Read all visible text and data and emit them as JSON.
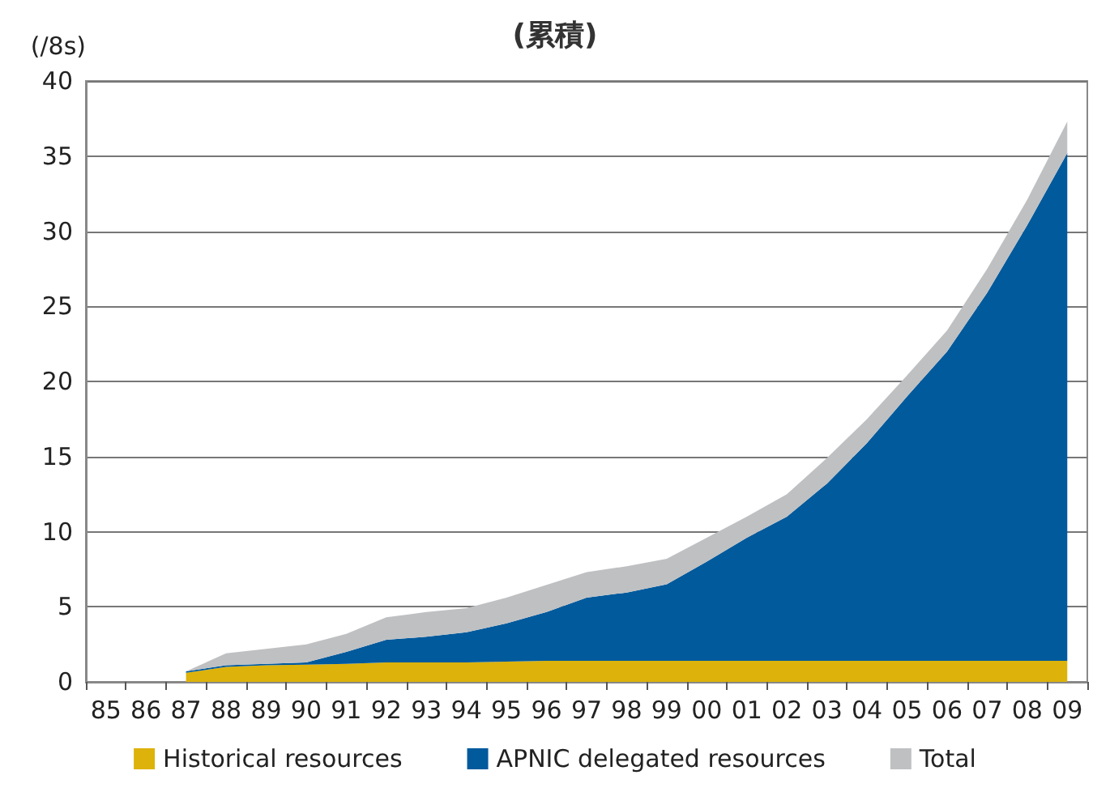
{
  "chart_data": {
    "type": "area",
    "title": "(累積)",
    "ylabel": "(/8s)",
    "stacked": true,
    "categories": [
      "85",
      "86",
      "87",
      "88",
      "89",
      "90",
      "91",
      "92",
      "93",
      "94",
      "95",
      "96",
      "97",
      "98",
      "99",
      "00",
      "01",
      "02",
      "03",
      "04",
      "05",
      "06",
      "07",
      "08",
      "09"
    ],
    "series": [
      {
        "name": "Historical resources",
        "color": "#ddb20a",
        "values": [
          null,
          null,
          0.6,
          1.0,
          1.1,
          1.15,
          1.2,
          1.3,
          1.3,
          1.3,
          1.35,
          1.4,
          1.4,
          1.4,
          1.4,
          1.4,
          1.4,
          1.4,
          1.4,
          1.4,
          1.4,
          1.4,
          1.4,
          1.4,
          1.4
        ]
      },
      {
        "name": "APNIC delegated resources",
        "color": "#005a9c",
        "values": [
          null,
          null,
          0.1,
          0.1,
          0.1,
          0.15,
          0.8,
          1.5,
          1.7,
          2.0,
          2.55,
          3.25,
          4.2,
          4.55,
          5.1,
          6.6,
          8.2,
          9.6,
          11.8,
          14.5,
          17.6,
          20.6,
          24.5,
          29.0,
          33.8
        ]
      },
      {
        "name": "Total",
        "color": "#bfc0c2",
        "values": [
          null,
          null,
          0.0,
          0.8,
          1.0,
          1.2,
          1.2,
          1.5,
          1.65,
          1.6,
          1.7,
          1.8,
          1.7,
          1.75,
          1.7,
          1.6,
          1.4,
          1.5,
          1.7,
          1.6,
          1.4,
          1.4,
          1.6,
          1.7,
          2.1
        ]
      }
    ],
    "ylim": [
      0,
      40
    ],
    "yticks": [
      0,
      5,
      10,
      15,
      20,
      25,
      30,
      35,
      40
    ],
    "grid": "y",
    "legend": "bottom",
    "marker": "none"
  }
}
